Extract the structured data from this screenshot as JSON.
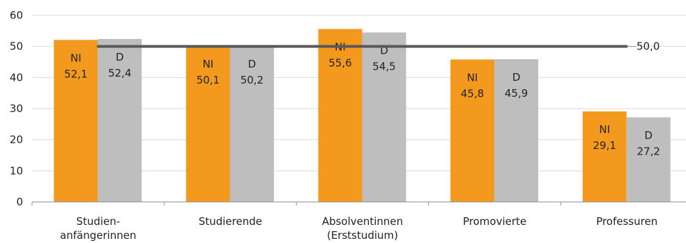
{
  "chart_data": {
    "type": "bar",
    "categories": [
      [
        "Studien-",
        "anfängerinnen"
      ],
      [
        "Studierende"
      ],
      [
        "Absolventinnen",
        "(Erststudium)"
      ],
      [
        "Promovierte"
      ],
      [
        "Professuren"
      ]
    ],
    "series": [
      {
        "name": "NI",
        "color": "#F39A1E",
        "values": [
          52.1,
          50.1,
          55.6,
          45.8,
          29.1
        ],
        "labels": [
          "52,1",
          "50,1",
          "55,6",
          "45,8",
          "29,1"
        ]
      },
      {
        "name": "D",
        "color": "#BEBEBE",
        "values": [
          52.4,
          50.2,
          54.5,
          45.9,
          27.2
        ],
        "labels": [
          "52,4",
          "50,2",
          "54,5",
          "45,9",
          "27,2"
        ]
      }
    ],
    "reference_line": {
      "value": 50.0,
      "label": "50,0",
      "color": "#595959"
    },
    "ylim": [
      0,
      60
    ],
    "yticks": [
      "0",
      "10",
      "20",
      "30",
      "40",
      "50",
      "60"
    ],
    "grid": true,
    "title": "",
    "xlabel": "",
    "ylabel": ""
  }
}
